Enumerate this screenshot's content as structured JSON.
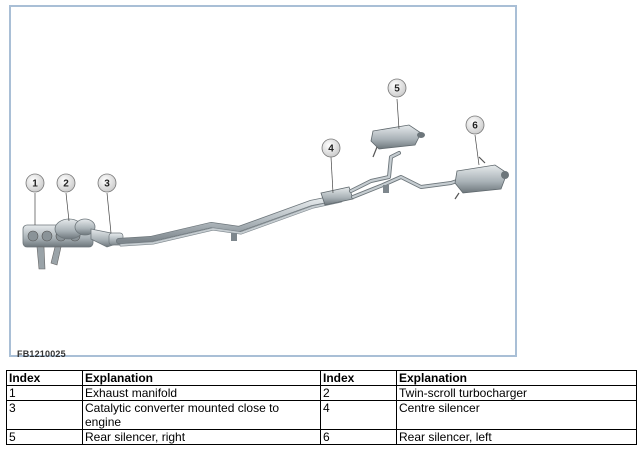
{
  "figure": {
    "code": "FB1210025",
    "callouts": [
      "1",
      "2",
      "3",
      "4",
      "5",
      "6"
    ]
  },
  "table": {
    "headers": [
      "Index",
      "Explanation",
      "Index",
      "Explanation"
    ],
    "rows": [
      [
        "1",
        "Exhaust manifold",
        "2",
        "Twin-scroll turbocharger"
      ],
      [
        "3",
        "Catalytic converter mounted close to engine",
        "4",
        "Centre silencer"
      ],
      [
        "5",
        "Rear silencer, right",
        "6",
        "Rear silencer, left"
      ]
    ]
  },
  "colors": {
    "border": "#a9bfd6",
    "pipe": "#b9c2c7",
    "callout_fill": "#e6e6e6"
  }
}
